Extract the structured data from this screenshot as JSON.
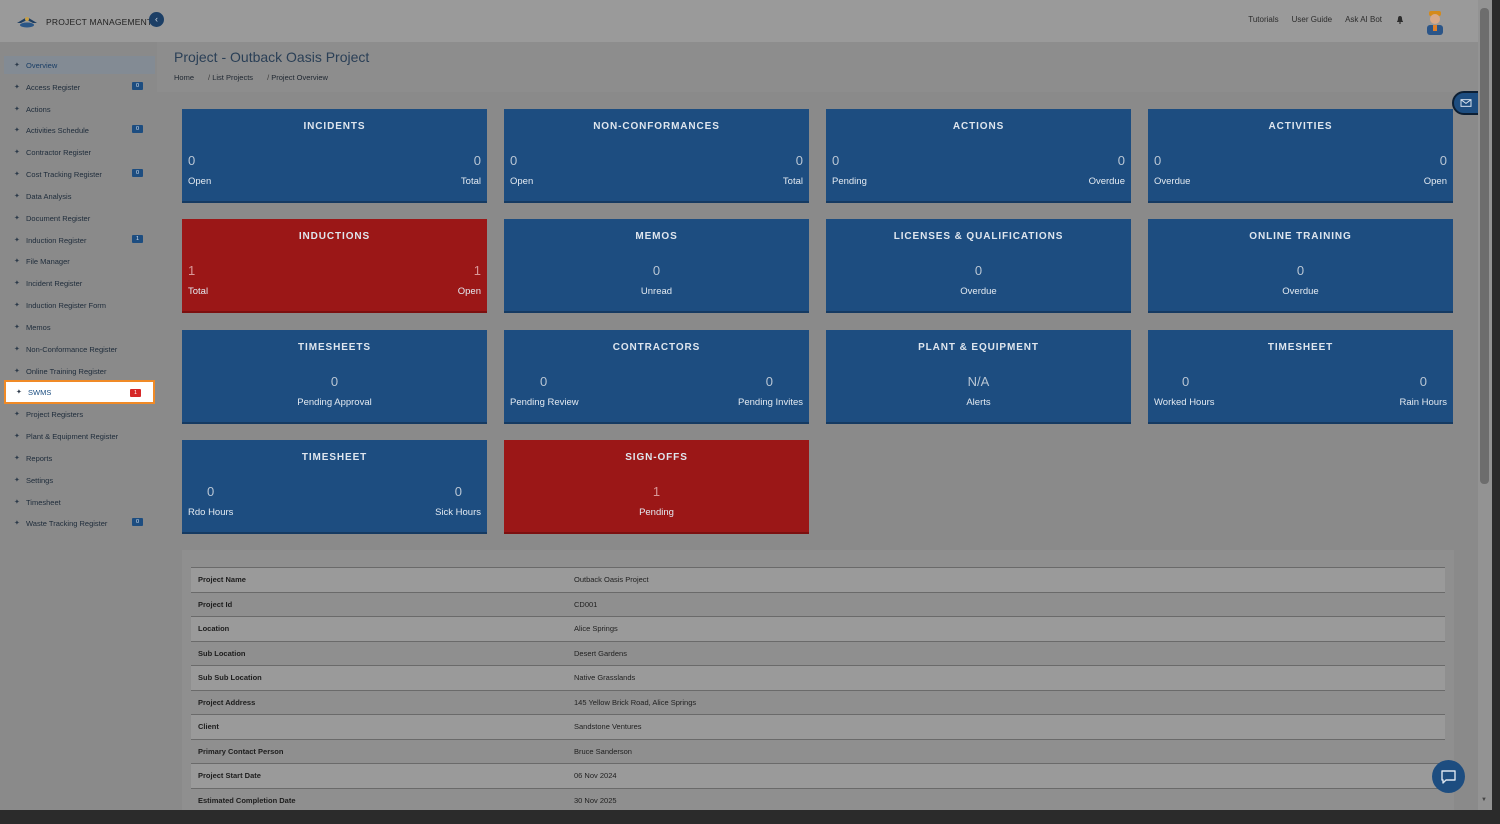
{
  "app": {
    "title": "PROJECT MANAGEMENT",
    "collapse_icon": "‹"
  },
  "toplinks": [
    "Tutorials",
    "User Guide",
    "Ask AI Bot"
  ],
  "sidebar": {
    "items": [
      {
        "label": "Overview",
        "badge": null
      },
      {
        "label": "Access Register",
        "badge": "0"
      },
      {
        "label": "Actions",
        "badge": null
      },
      {
        "label": "Activities Schedule",
        "badge": "0"
      },
      {
        "label": "Contractor Register",
        "badge": null
      },
      {
        "label": "Cost Tracking Register",
        "badge": "0"
      },
      {
        "label": "Data Analysis",
        "badge": null
      },
      {
        "label": "Document Register",
        "badge": null
      },
      {
        "label": "Induction Register",
        "badge": "1"
      },
      {
        "label": "File Manager",
        "badge": null
      },
      {
        "label": "Incident Register",
        "badge": null
      },
      {
        "label": "Induction Register Form",
        "badge": null
      },
      {
        "label": "Memos",
        "badge": null
      },
      {
        "label": "Non-Conformance Register",
        "badge": null
      },
      {
        "label": "Online Training Register",
        "badge": null
      },
      {
        "label": "SWMS",
        "badge": "1"
      },
      {
        "label": "Project Registers",
        "badge": null
      },
      {
        "label": "Plant & Equipment Register",
        "badge": null
      },
      {
        "label": "Reports",
        "badge": null
      },
      {
        "label": "Settings",
        "badge": null
      },
      {
        "label": "Timesheet",
        "badge": null
      },
      {
        "label": "Waste Tracking Register",
        "badge": "0"
      }
    ]
  },
  "header": {
    "title": "Project - Outback Oasis Project",
    "breadcrumb": [
      "Home",
      "List Projects",
      "Project Overview"
    ],
    "separator": "/"
  },
  "cards": [
    {
      "title": "INCIDENTS",
      "left": {
        "value": "0",
        "label": "Open"
      },
      "right": {
        "value": "0",
        "label": "Total"
      }
    },
    {
      "title": "NON-CONFORMANCES",
      "left": {
        "value": "0",
        "label": "Open"
      },
      "right": {
        "value": "0",
        "label": "Total"
      }
    },
    {
      "title": "ACTIONS",
      "left": {
        "value": "0",
        "label": "Pending"
      },
      "right": {
        "value": "0",
        "label": "Overdue"
      }
    },
    {
      "title": "ACTIVITIES",
      "left": {
        "value": "0",
        "label": "Overdue"
      },
      "right": {
        "value": "0",
        "label": "Open"
      }
    },
    {
      "title": "INDUCTIONS",
      "left": {
        "value": "1",
        "label": "Total"
      },
      "right": {
        "value": "1",
        "label": "Open"
      }
    },
    {
      "title": "MEMOS",
      "center": {
        "value": "0",
        "label": "Unread"
      }
    },
    {
      "title": "LICENSES & QUALIFICATIONS",
      "center": {
        "value": "0",
        "label": "Overdue"
      }
    },
    {
      "title": "ONLINE TRAINING",
      "center": {
        "value": "0",
        "label": "Overdue"
      }
    },
    {
      "title": "TIMESHEETS",
      "center": {
        "value": "0",
        "label": "Pending Approval"
      }
    },
    {
      "title": "CONTRACTORS",
      "left": {
        "value": "0",
        "label": "Pending Review"
      },
      "right": {
        "value": "0",
        "label": "Pending Invites"
      }
    },
    {
      "title": "PLANT & EQUIPMENT",
      "center": {
        "value": "N/A",
        "label": "Alerts"
      }
    },
    {
      "title": "TIMESHEET",
      "left": {
        "value": "0",
        "label": "Worked Hours"
      },
      "right": {
        "value": "0",
        "label": "Rain Hours"
      }
    },
    {
      "title": "TIMESHEET",
      "left": {
        "value": "0",
        "label": "Rdo Hours"
      },
      "right": {
        "value": "0",
        "label": "Sick Hours"
      }
    },
    {
      "title": "SIGN-OFFS",
      "center": {
        "value": "1",
        "label": "Pending"
      }
    }
  ],
  "colors": {
    "card_blue": "#1d4d80",
    "card_red": "#9b1717",
    "highlight": "#f08a26"
  },
  "project_info": [
    {
      "key": "Project Name",
      "value": "Outback Oasis Project"
    },
    {
      "key": "Project Id",
      "value": "CD001"
    },
    {
      "key": "Location",
      "value": "Alice Springs"
    },
    {
      "key": "Sub Location",
      "value": "Desert Gardens"
    },
    {
      "key": "Sub Sub Location",
      "value": "Native Grasslands"
    },
    {
      "key": "Project Address",
      "value": "145 Yellow Brick Road, Alice Springs"
    },
    {
      "key": "Client",
      "value": "Sandstone Ventures"
    },
    {
      "key": "Primary Contact Person",
      "value": "Bruce Sanderson"
    },
    {
      "key": "Project Start Date",
      "value": "06 Nov 2024"
    },
    {
      "key": "Estimated Completion Date",
      "value": "30 Nov 2025"
    }
  ]
}
